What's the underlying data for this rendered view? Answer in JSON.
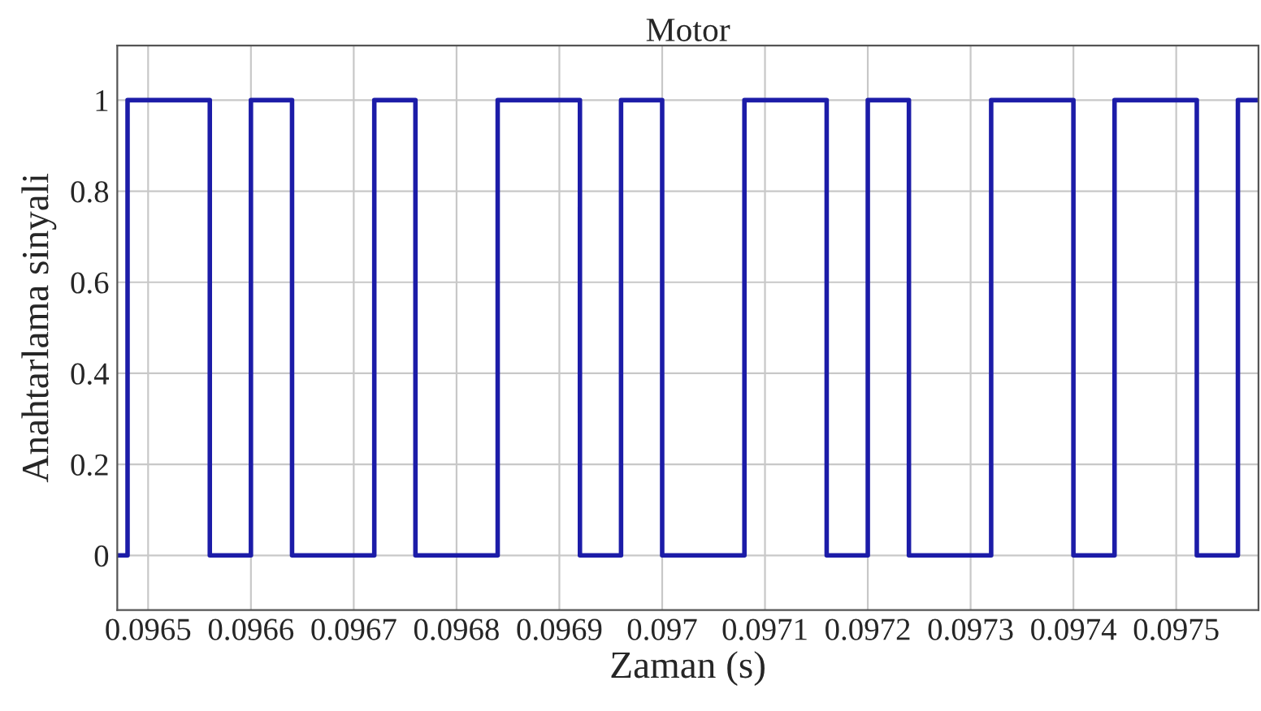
{
  "chart_data": {
    "type": "step",
    "title": "Motor",
    "xlabel": "Zaman (s)",
    "ylabel": "Anahtarlama sinyali",
    "x": [
      0.09647,
      0.09648,
      0.09656,
      0.0966,
      0.09664,
      0.09672,
      0.09676,
      0.09684,
      0.09692,
      0.09696,
      0.097,
      0.09708,
      0.09716,
      0.0972,
      0.09724,
      0.09732,
      0.0974,
      0.09744,
      0.09752,
      0.09756,
      0.09758
    ],
    "series": [
      {
        "color": "#1c1ca8",
        "values": [
          0,
          1,
          0,
          1,
          0,
          1,
          0,
          1,
          0,
          1,
          0,
          1,
          0,
          1,
          0,
          1,
          0,
          1,
          0,
          1,
          1
        ]
      }
    ],
    "xlim": [
      0.09647,
      0.09758
    ],
    "ylim": [
      -0.12,
      1.12
    ],
    "xticks": [
      0.0965,
      0.0966,
      0.0967,
      0.0968,
      0.0969,
      0.097,
      0.0971,
      0.0972,
      0.0973,
      0.0974,
      0.0975
    ],
    "yticks": [
      0,
      0.2,
      0.4,
      0.6,
      0.8,
      1
    ],
    "grid": true,
    "line_style": "solid",
    "marker": "none"
  }
}
